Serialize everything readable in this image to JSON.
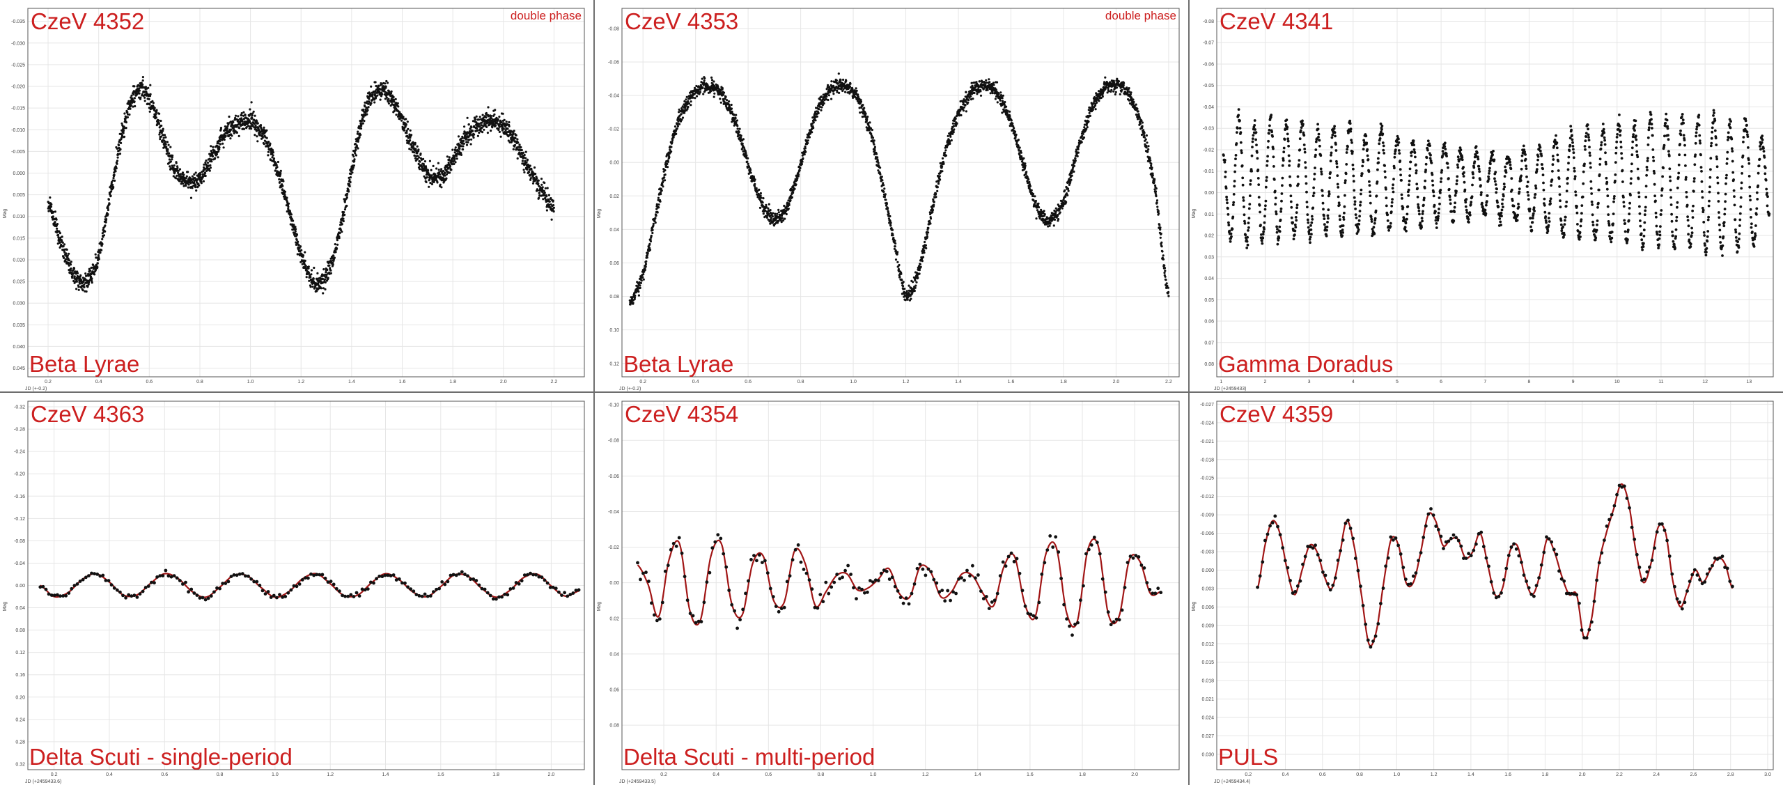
{
  "colors": {
    "label_red": "#cc1f1f",
    "points": "#111111",
    "fit_line": "#a11616",
    "gridline": "#e6e6e6",
    "axis": "#555555",
    "panel_border": "#6e6e6e"
  },
  "chart_data": [
    {
      "id": "czev4352",
      "type": "scatter",
      "star_name": "CzeV 4352",
      "star_type": "Beta Lyrae",
      "note": "double phase",
      "xlabel": "JD (+-0.2)",
      "ylabel": "Mag",
      "xlim": [
        0.12,
        2.32
      ],
      "ylim": [
        0.047,
        -0.038
      ],
      "xticks": [
        "0.2",
        "0.4",
        "0.6",
        "0.8",
        "1.0",
        "1.2",
        "1.4",
        "1.6",
        "1.8",
        "2.0",
        "2.2"
      ],
      "yticks": [
        "-0.035",
        "-0.030",
        "-0.025",
        "-0.020",
        "-0.015",
        "-0.010",
        "-0.005",
        "0.000",
        "0.005",
        "0.010",
        "0.015",
        "0.020",
        "0.025",
        "0.030",
        "0.035",
        "0.040",
        "0.045"
      ],
      "y_reversed": true,
      "fit_line": false,
      "x": [
        0.2,
        0.25,
        0.3,
        0.35,
        0.4,
        0.45,
        0.5,
        0.55,
        0.6,
        0.65,
        0.7,
        0.75,
        0.8,
        0.85,
        0.9,
        0.95,
        1.0,
        1.05,
        1.1,
        1.15,
        1.2,
        1.25,
        1.3,
        1.35,
        1.4,
        1.45,
        1.5,
        1.55,
        1.6,
        1.65,
        1.7,
        1.75,
        1.8,
        1.85,
        1.9,
        1.95,
        2.0,
        2.05,
        2.1,
        2.15,
        2.2
      ],
      "values": [
        0.007,
        0.016,
        0.023,
        0.025,
        0.019,
        0.004,
        -0.011,
        -0.019,
        -0.017,
        -0.009,
        -0.001,
        0.002,
        0.001,
        -0.004,
        -0.009,
        -0.011,
        -0.012,
        -0.009,
        -0.002,
        0.008,
        0.019,
        0.025,
        0.024,
        0.014,
        -0.001,
        -0.014,
        -0.019,
        -0.018,
        -0.012,
        -0.005,
        0.0,
        0.001,
        -0.003,
        -0.008,
        -0.011,
        -0.012,
        -0.011,
        -0.007,
        -0.001,
        0.004,
        0.008
      ],
      "band": 0.0022
    },
    {
      "id": "czev4353",
      "type": "scatter",
      "star_name": "CzeV 4353",
      "star_type": "Beta Lyrae",
      "note": "double phase",
      "xlabel": "JD (+-0.2)",
      "ylabel": "Mag",
      "xlim": [
        0.12,
        2.24
      ],
      "ylim": [
        0.128,
        -0.092
      ],
      "xticks": [
        "0.2",
        "0.4",
        "0.6",
        "0.8",
        "1.0",
        "1.2",
        "1.4",
        "1.6",
        "1.8",
        "2.0",
        "2.2"
      ],
      "yticks": [
        "-0.08",
        "-0.06",
        "-0.04",
        "-0.02",
        "0.00",
        "0.02",
        "0.04",
        "0.06",
        "0.08",
        "0.10",
        "0.12"
      ],
      "y_reversed": true,
      "fit_line": false,
      "x": [
        0.15,
        0.2,
        0.25,
        0.3,
        0.35,
        0.4,
        0.45,
        0.5,
        0.55,
        0.6,
        0.65,
        0.7,
        0.75,
        0.8,
        0.85,
        0.9,
        0.95,
        1.0,
        1.05,
        1.1,
        1.15,
        1.2,
        1.25,
        1.3,
        1.35,
        1.4,
        1.45,
        1.5,
        1.55,
        1.6,
        1.65,
        1.7,
        1.75,
        1.8,
        1.85,
        1.9,
        1.95,
        2.0,
        2.05,
        2.1,
        2.15,
        2.2
      ],
      "values": [
        0.083,
        0.066,
        0.03,
        -0.006,
        -0.03,
        -0.042,
        -0.046,
        -0.041,
        -0.025,
        0.001,
        0.024,
        0.034,
        0.026,
        0.001,
        -0.025,
        -0.041,
        -0.046,
        -0.042,
        -0.026,
        0.005,
        0.043,
        0.079,
        0.064,
        0.028,
        -0.006,
        -0.029,
        -0.042,
        -0.046,
        -0.041,
        -0.024,
        0.003,
        0.027,
        0.034,
        0.023,
        -0.005,
        -0.029,
        -0.043,
        -0.046,
        -0.04,
        -0.02,
        0.018,
        0.08
      ],
      "band": 0.0042
    },
    {
      "id": "czev4341",
      "type": "scatter",
      "star_name": "CzeV 4341",
      "star_type": "Gamma Doradus",
      "note": "",
      "xlabel": "JD (+2459433)",
      "ylabel": "Mag",
      "xlim": [
        0.9,
        13.55
      ],
      "ylim": [
        0.086,
        -0.086
      ],
      "xticks": [
        "1",
        "2",
        "3",
        "4",
        "5",
        "6",
        "7",
        "8",
        "9",
        "10",
        "11",
        "12",
        "13"
      ],
      "yticks": [
        "-0.08",
        "-0.07",
        "-0.06",
        "-0.05",
        "-0.04",
        "-0.03",
        "-0.02",
        "-0.01",
        "0.00",
        "0.01",
        "0.02",
        "0.03",
        "0.04",
        "0.05",
        "0.06",
        "0.07",
        "0.08"
      ],
      "y_reversed": true,
      "fit_line": false,
      "x": [
        1.05,
        1.22,
        1.4,
        1.58,
        1.76,
        1.94,
        2.12,
        2.3,
        2.48,
        2.66,
        2.84,
        3.02,
        3.2,
        3.38,
        3.56,
        3.74,
        3.92,
        4.1,
        4.28,
        4.46,
        4.64,
        4.82,
        5.0,
        5.18,
        5.36,
        5.54,
        5.72,
        5.9,
        6.08,
        6.26,
        6.44,
        6.62,
        6.8,
        6.98,
        7.16,
        7.34,
        7.52,
        7.7,
        7.88,
        8.06,
        8.24,
        8.42,
        8.6,
        8.78,
        8.96,
        9.14,
        9.32,
        9.5,
        9.68,
        9.86,
        10.04,
        10.22,
        10.4,
        10.58,
        10.76,
        10.94,
        11.12,
        11.3,
        11.48,
        11.66,
        11.84,
        12.02,
        12.2,
        12.38,
        12.56,
        12.74,
        12.92,
        13.1,
        13.28,
        13.46
      ],
      "values": [
        -0.02,
        0.021,
        -0.035,
        0.023,
        -0.031,
        0.023,
        -0.034,
        0.022,
        -0.032,
        0.02,
        -0.033,
        0.021,
        -0.029,
        0.019,
        -0.03,
        0.02,
        -0.031,
        0.018,
        -0.027,
        0.019,
        -0.03,
        0.017,
        -0.026,
        0.016,
        -0.024,
        0.015,
        -0.023,
        0.014,
        -0.022,
        0.012,
        -0.02,
        0.013,
        -0.019,
        0.011,
        -0.018,
        0.012,
        -0.017,
        0.013,
        -0.019,
        0.015,
        -0.021,
        0.017,
        -0.025,
        0.02,
        -0.028,
        0.021,
        -0.031,
        0.022,
        -0.03,
        0.022,
        -0.033,
        0.023,
        -0.031,
        0.025,
        -0.036,
        0.024,
        -0.034,
        0.026,
        -0.035,
        0.025,
        -0.034,
        0.027,
        -0.036,
        0.027,
        -0.032,
        0.026,
        -0.034,
        0.024,
        -0.025,
        0.012
      ],
      "band": 0
    },
    {
      "id": "czev4363",
      "type": "line",
      "star_name": "CzeV 4363",
      "star_type": "Delta Scuti - single-period",
      "note": "",
      "xlabel": "JD (+2459433.6)",
      "ylabel": "Mag",
      "xlim": [
        0.105,
        2.12
      ],
      "ylim": [
        0.33,
        -0.33
      ],
      "xticks": [
        "0.2",
        "0.4",
        "0.6",
        "0.8",
        "1.0",
        "1.2",
        "1.4",
        "1.6",
        "1.8",
        "2.0"
      ],
      "yticks": [
        "-0.32",
        "-0.28",
        "-0.24",
        "-0.20",
        "-0.16",
        "-0.12",
        "-0.08",
        "-0.04",
        "0.00",
        "0.04",
        "0.08",
        "0.12",
        "0.16",
        "0.20",
        "0.24",
        "0.28",
        "0.32"
      ],
      "y_reversed": true,
      "fit_line": true,
      "x": [
        0.15,
        0.2,
        0.25,
        0.3,
        0.35,
        0.4,
        0.45,
        0.5,
        0.55,
        0.6,
        0.65,
        0.7,
        0.75,
        0.8,
        0.85,
        0.9,
        0.95,
        1.0,
        1.05,
        1.1,
        1.15,
        1.2,
        1.25,
        1.3,
        1.35,
        1.4,
        1.45,
        1.5,
        1.55,
        1.6,
        1.65,
        1.7,
        1.75,
        1.8,
        1.85,
        1.9,
        1.95,
        2.0,
        2.05,
        2.1
      ],
      "values": [
        0.0,
        0.02,
        0.013,
        -0.01,
        -0.021,
        -0.006,
        0.017,
        0.017,
        -0.004,
        -0.021,
        -0.012,
        0.011,
        0.021,
        0.003,
        -0.018,
        -0.017,
        0.004,
        0.021,
        0.011,
        -0.012,
        -0.021,
        -0.003,
        0.018,
        0.017,
        -0.005,
        -0.021,
        -0.01,
        0.012,
        0.02,
        0.002,
        -0.019,
        -0.016,
        0.006,
        0.021,
        0.009,
        -0.014,
        -0.02,
        0.001,
        0.019,
        0.01
      ]
    },
    {
      "id": "czev4354",
      "type": "line",
      "star_name": "CzeV 4354",
      "star_type": "Delta Scuti - multi-period",
      "note": "",
      "xlabel": "JD (+2459433.5)",
      "ylabel": "Mag",
      "xlim": [
        0.04,
        2.17
      ],
      "ylim": [
        0.105,
        -0.102
      ],
      "xticks": [
        "0.2",
        "0.4",
        "0.6",
        "0.8",
        "1.0",
        "1.2",
        "1.4",
        "1.6",
        "1.8",
        "2.0"
      ],
      "yticks": [
        "-0.10",
        "-0.08",
        "-0.06",
        "-0.04",
        "-0.02",
        "0.00",
        "0.02",
        "0.04",
        "0.06",
        "0.08"
      ],
      "y_reversed": true,
      "fit_line": true,
      "x": [
        0.1,
        0.14,
        0.18,
        0.22,
        0.26,
        0.3,
        0.34,
        0.38,
        0.42,
        0.46,
        0.5,
        0.54,
        0.58,
        0.62,
        0.66,
        0.7,
        0.74,
        0.78,
        0.82,
        0.86,
        0.9,
        0.94,
        0.98,
        1.02,
        1.06,
        1.1,
        1.14,
        1.18,
        1.22,
        1.26,
        1.3,
        1.34,
        1.38,
        1.42,
        1.46,
        1.5,
        1.54,
        1.58,
        1.62,
        1.66,
        1.7,
        1.74,
        1.78,
        1.82,
        1.86,
        1.9,
        1.94,
        1.98,
        2.02,
        2.06,
        2.1
      ],
      "values": [
        -0.01,
        0.001,
        0.019,
        -0.013,
        -0.022,
        0.016,
        0.021,
        -0.015,
        -0.022,
        0.012,
        0.018,
        -0.011,
        -0.015,
        0.01,
        0.011,
        -0.018,
        -0.011,
        0.013,
        0.005,
        -0.004,
        -0.005,
        0.004,
        0.003,
        -0.002,
        -0.008,
        0.006,
        0.008,
        -0.009,
        -0.006,
        0.008,
        0.005,
        -0.005,
        -0.004,
        0.006,
        0.013,
        -0.009,
        -0.015,
        0.012,
        0.019,
        -0.016,
        -0.02,
        0.017,
        0.022,
        -0.018,
        -0.021,
        0.018,
        0.019,
        -0.013,
        -0.012,
        0.006,
        0.005
      ],
      "scatter": 0.0025
    },
    {
      "id": "czev4359",
      "type": "line",
      "star_name": "CzeV 4359",
      "star_type": "PULS",
      "note": "",
      "xlabel": "JD (+2459434.4)",
      "ylabel": "Mag",
      "xlim": [
        0.03,
        3.03
      ],
      "ylim": [
        0.0325,
        -0.0275
      ],
      "xticks": [
        "0.2",
        "0.4",
        "0.6",
        "0.8",
        "1.0",
        "1.2",
        "1.4",
        "1.6",
        "1.8",
        "2.0",
        "2.2",
        "2.4",
        "2.6",
        "2.8",
        "3.0"
      ],
      "yticks": [
        "-0.027",
        "-0.024",
        "-0.021",
        "-0.018",
        "-0.015",
        "-0.012",
        "-0.009",
        "-0.006",
        "-0.003",
        "0.000",
        "0.003",
        "0.006",
        "0.009",
        "0.012",
        "0.015",
        "0.018",
        "0.021",
        "0.024",
        "0.027",
        "0.030"
      ],
      "y_reversed": true,
      "fit_line": true,
      "x": [
        0.25,
        0.29,
        0.33,
        0.37,
        0.41,
        0.45,
        0.49,
        0.53,
        0.57,
        0.61,
        0.65,
        0.69,
        0.73,
        0.77,
        0.81,
        0.85,
        0.89,
        0.93,
        0.97,
        1.01,
        1.05,
        1.09,
        1.13,
        1.17,
        1.21,
        1.25,
        1.29,
        1.33,
        1.37,
        1.41,
        1.45,
        1.49,
        1.53,
        1.57,
        1.61,
        1.65,
        1.69,
        1.73,
        1.77,
        1.81,
        1.85,
        1.89,
        1.93,
        1.97,
        2.01,
        2.05,
        2.09,
        2.13,
        2.17,
        2.21,
        2.25,
        2.29,
        2.33,
        2.37,
        2.41,
        2.45,
        2.49,
        2.53,
        2.57,
        2.61,
        2.65,
        2.69,
        2.73,
        2.77,
        2.81
      ],
      "values": [
        0.003,
        -0.004,
        -0.008,
        -0.006,
        0.0,
        0.004,
        0.0,
        -0.004,
        -0.003,
        0.001,
        0.003,
        -0.002,
        -0.008,
        -0.004,
        0.004,
        0.012,
        0.01,
        0.002,
        -0.005,
        -0.004,
        0.002,
        0.002,
        -0.003,
        -0.009,
        -0.008,
        -0.004,
        -0.005,
        -0.005,
        -0.002,
        -0.003,
        -0.006,
        -0.001,
        0.004,
        0.003,
        -0.003,
        -0.004,
        0.001,
        0.004,
        0.001,
        -0.005,
        -0.003,
        0.001,
        0.004,
        0.004,
        0.011,
        0.008,
        -0.001,
        -0.006,
        -0.01,
        -0.014,
        -0.011,
        -0.003,
        0.002,
        -0.001,
        -0.007,
        -0.006,
        0.002,
        0.006,
        0.003,
        0.0,
        0.002,
        0.0,
        -0.002,
        -0.001,
        0.003
      ],
      "scatter": 0.0004
    }
  ]
}
